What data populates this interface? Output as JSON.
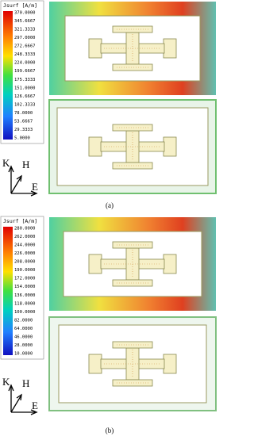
{
  "panels": [
    {
      "legend_title": "Jsurf [A/m]",
      "legend_ticks": [
        "370.0000",
        "345.6667",
        "321.3333",
        "297.0000",
        "272.6667",
        "248.3333",
        "224.0000",
        "199.6667",
        "175.3333",
        "151.0000",
        "126.6667",
        "102.3333",
        "78.0000",
        "53.6667",
        "29.3333",
        "5.0000"
      ],
      "axes": {
        "k": "K",
        "h": "H",
        "e": "E"
      },
      "caption": "(a)"
    },
    {
      "legend_title": "Jsurf [A/m]",
      "legend_ticks": [
        "280.0000",
        "262.0000",
        "244.0000",
        "226.0000",
        "208.0000",
        "190.0000",
        "172.0000",
        "154.0000",
        "136.0000",
        "118.0000",
        "100.0000",
        "82.0000",
        "64.0000",
        "46.0000",
        "28.0000",
        "10.0000"
      ],
      "axes": {
        "k": "K",
        "h": "H",
        "e": "E"
      },
      "caption": "(b)"
    }
  ]
}
